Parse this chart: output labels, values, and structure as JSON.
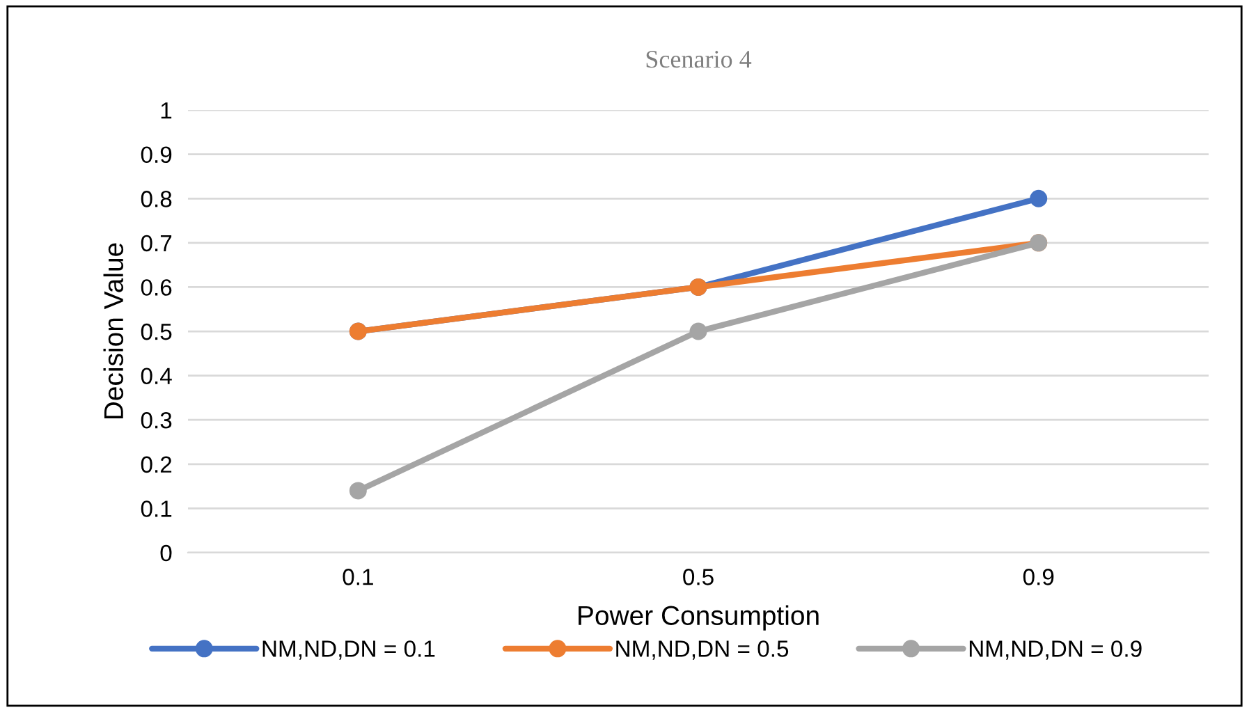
{
  "chart_data": {
    "type": "line",
    "title": "Scenario 4",
    "xlabel": "Power Consumption",
    "ylabel": "Decision Value",
    "categories": [
      "0.1",
      "0.5",
      "0.9"
    ],
    "series": [
      {
        "name": "NM,ND,DN = 0.1",
        "color": "#4472c4",
        "values": [
          0.5,
          0.6,
          0.8
        ]
      },
      {
        "name": "NM,ND,DN = 0.5",
        "color": "#ed7d31",
        "values": [
          0.5,
          0.6,
          0.7
        ]
      },
      {
        "name": "NM,ND,DN = 0.9",
        "color": "#a5a5a5",
        "values": [
          0.14,
          0.5,
          0.7
        ]
      }
    ],
    "ylim": [
      0,
      1
    ],
    "yticks": [
      0,
      0.1,
      0.2,
      0.3,
      0.4,
      0.5,
      0.6,
      0.7,
      0.8,
      0.9,
      1
    ],
    "grid": "y",
    "legend": "bottom",
    "marker": "circle",
    "line_style": "solid"
  }
}
